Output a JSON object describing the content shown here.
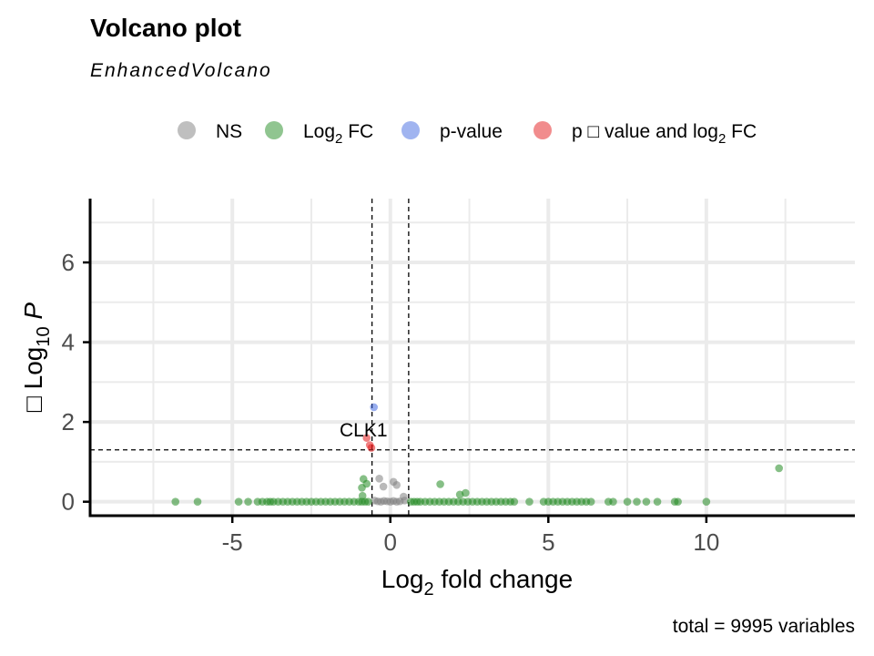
{
  "chart_data": {
    "type": "scatter",
    "title": "Volcano plot",
    "subtitle": "EnhancedVolcano",
    "xlabel": "Log2 fold change",
    "xlabel_parts": {
      "pre": "Log",
      "sub": "2",
      "post": " fold change"
    },
    "ylabel": "− Log10 P",
    "ylabel_parts": {
      "pre": "□ Log",
      "sub": "10",
      "post": " P"
    },
    "caption": "total = 9995 variables",
    "xlim": [
      -9.5,
      14.7
    ],
    "ylim": [
      -0.35,
      7.6
    ],
    "x_ticks": [
      -5,
      0,
      5,
      10
    ],
    "x_tick_labels": [
      "-5",
      "0",
      "5",
      "10"
    ],
    "y_ticks": [
      0,
      2,
      4,
      6
    ],
    "y_tick_labels": [
      "0",
      "2",
      "4",
      "6"
    ],
    "grid": true,
    "legend_position": "top",
    "thresholds": {
      "fc_cutoff": [
        -0.58,
        0.58
      ],
      "p_cutoff_neglog10": 1.3
    },
    "colors": {
      "NS": "#7f7f7f",
      "Log2 FC": "#228b22",
      "p-value": "#4169e1",
      "p - value and log2 FC": "#e41a1c"
    },
    "legend": [
      {
        "key": "NS",
        "pre": "NS",
        "sub": "",
        "post": "",
        "color": "#7f7f7f"
      },
      {
        "key": "Log2 FC",
        "pre": "Log",
        "sub": "2",
        "post": " FC",
        "color": "#228b22"
      },
      {
        "key": "p-value",
        "pre": "p-value",
        "sub": "",
        "post": "",
        "color": "#4169e1"
      },
      {
        "key": "p - value and log2 FC",
        "pre": "p □ value and log",
        "sub": "2",
        "post": " FC",
        "color": "#e41a1c"
      }
    ],
    "series": [
      {
        "key": "NS",
        "points": [
          {
            "x": -0.35,
            "y": 0.58
          },
          {
            "x": -0.22,
            "y": 0.38
          },
          {
            "x": 0.1,
            "y": 0.5
          },
          {
            "x": 0.2,
            "y": 0.42
          },
          {
            "x": 0.42,
            "y": 0.13
          },
          {
            "x": -0.5,
            "y": 0.03
          },
          {
            "x": -0.4,
            "y": 0.01
          },
          {
            "x": -0.3,
            "y": 0.0
          },
          {
            "x": -0.2,
            "y": 0.02
          },
          {
            "x": -0.1,
            "y": 0.01
          },
          {
            "x": 0.0,
            "y": 0.0
          },
          {
            "x": 0.1,
            "y": 0.02
          },
          {
            "x": 0.2,
            "y": 0.0
          },
          {
            "x": 0.3,
            "y": 0.01
          },
          {
            "x": 0.45,
            "y": 0.03
          }
        ]
      },
      {
        "key": "Log2 FC",
        "points": [
          {
            "x": -6.8,
            "y": 0.0
          },
          {
            "x": -6.1,
            "y": 0.0
          },
          {
            "x": -4.8,
            "y": 0.0
          },
          {
            "x": -4.5,
            "y": 0.0
          },
          {
            "x": -4.2,
            "y": 0.0
          },
          {
            "x": -4.05,
            "y": 0.0
          },
          {
            "x": -3.9,
            "y": 0.0
          },
          {
            "x": -3.8,
            "y": 0.0
          },
          {
            "x": -3.7,
            "y": 0.0
          },
          {
            "x": -3.55,
            "y": 0.0
          },
          {
            "x": -3.4,
            "y": 0.0
          },
          {
            "x": -3.25,
            "y": 0.0
          },
          {
            "x": -3.1,
            "y": 0.0
          },
          {
            "x": -2.95,
            "y": 0.0
          },
          {
            "x": -2.8,
            "y": 0.0
          },
          {
            "x": -2.65,
            "y": 0.0
          },
          {
            "x": -2.5,
            "y": 0.0
          },
          {
            "x": -2.35,
            "y": 0.0
          },
          {
            "x": -2.2,
            "y": 0.0
          },
          {
            "x": -2.05,
            "y": 0.0
          },
          {
            "x": -1.9,
            "y": 0.0
          },
          {
            "x": -1.75,
            "y": 0.0
          },
          {
            "x": -1.6,
            "y": 0.0
          },
          {
            "x": -1.45,
            "y": 0.0
          },
          {
            "x": -1.3,
            "y": 0.0
          },
          {
            "x": -1.15,
            "y": 0.0
          },
          {
            "x": -1.0,
            "y": 0.0
          },
          {
            "x": -0.9,
            "y": 0.0
          },
          {
            "x": -0.8,
            "y": 0.0
          },
          {
            "x": -0.7,
            "y": 0.0
          },
          {
            "x": -0.85,
            "y": 0.57
          },
          {
            "x": -0.9,
            "y": 0.35
          },
          {
            "x": -0.75,
            "y": 0.45
          },
          {
            "x": -0.88,
            "y": 0.15
          },
          {
            "x": 0.65,
            "y": 0.0
          },
          {
            "x": 0.75,
            "y": 0.0
          },
          {
            "x": 0.85,
            "y": 0.0
          },
          {
            "x": 0.95,
            "y": 0.0
          },
          {
            "x": 1.1,
            "y": 0.0
          },
          {
            "x": 1.25,
            "y": 0.0
          },
          {
            "x": 1.4,
            "y": 0.0
          },
          {
            "x": 1.55,
            "y": 0.0
          },
          {
            "x": 1.7,
            "y": 0.0
          },
          {
            "x": 1.85,
            "y": 0.0
          },
          {
            "x": 2.0,
            "y": 0.0
          },
          {
            "x": 2.15,
            "y": 0.0
          },
          {
            "x": 2.3,
            "y": 0.0
          },
          {
            "x": 2.45,
            "y": 0.0
          },
          {
            "x": 2.6,
            "y": 0.0
          },
          {
            "x": 2.75,
            "y": 0.0
          },
          {
            "x": 2.9,
            "y": 0.0
          },
          {
            "x": 3.05,
            "y": 0.0
          },
          {
            "x": 3.2,
            "y": 0.0
          },
          {
            "x": 3.35,
            "y": 0.0
          },
          {
            "x": 3.5,
            "y": 0.0
          },
          {
            "x": 3.65,
            "y": 0.0
          },
          {
            "x": 3.8,
            "y": 0.0
          },
          {
            "x": 3.92,
            "y": 0.0
          },
          {
            "x": 1.58,
            "y": 0.44
          },
          {
            "x": 2.2,
            "y": 0.18
          },
          {
            "x": 2.38,
            "y": 0.22
          },
          {
            "x": 4.4,
            "y": 0.0
          },
          {
            "x": 4.85,
            "y": 0.0
          },
          {
            "x": 5.0,
            "y": 0.0
          },
          {
            "x": 5.15,
            "y": 0.0
          },
          {
            "x": 5.3,
            "y": 0.0
          },
          {
            "x": 5.45,
            "y": 0.0
          },
          {
            "x": 5.6,
            "y": 0.0
          },
          {
            "x": 5.75,
            "y": 0.0
          },
          {
            "x": 5.9,
            "y": 0.0
          },
          {
            "x": 6.05,
            "y": 0.0
          },
          {
            "x": 6.2,
            "y": 0.0
          },
          {
            "x": 6.35,
            "y": 0.0
          },
          {
            "x": 6.9,
            "y": 0.0
          },
          {
            "x": 7.05,
            "y": 0.0
          },
          {
            "x": 7.5,
            "y": 0.0
          },
          {
            "x": 7.8,
            "y": 0.0
          },
          {
            "x": 8.1,
            "y": 0.0
          },
          {
            "x": 8.45,
            "y": 0.0
          },
          {
            "x": 9.0,
            "y": 0.0
          },
          {
            "x": 9.1,
            "y": 0.0
          },
          {
            "x": 10.0,
            "y": 0.0
          },
          {
            "x": 12.3,
            "y": 0.84
          }
        ]
      },
      {
        "key": "p-value",
        "points": [
          {
            "x": -0.52,
            "y": 2.37
          }
        ]
      },
      {
        "key": "p - value and log2 FC",
        "points": [
          {
            "x": -0.75,
            "y": 1.6
          },
          {
            "x": -0.65,
            "y": 1.42
          },
          {
            "x": -0.6,
            "y": 1.35
          }
        ]
      }
    ],
    "annotations": [
      {
        "text": "CLK1",
        "x": -0.85,
        "y": 1.55
      }
    ]
  }
}
